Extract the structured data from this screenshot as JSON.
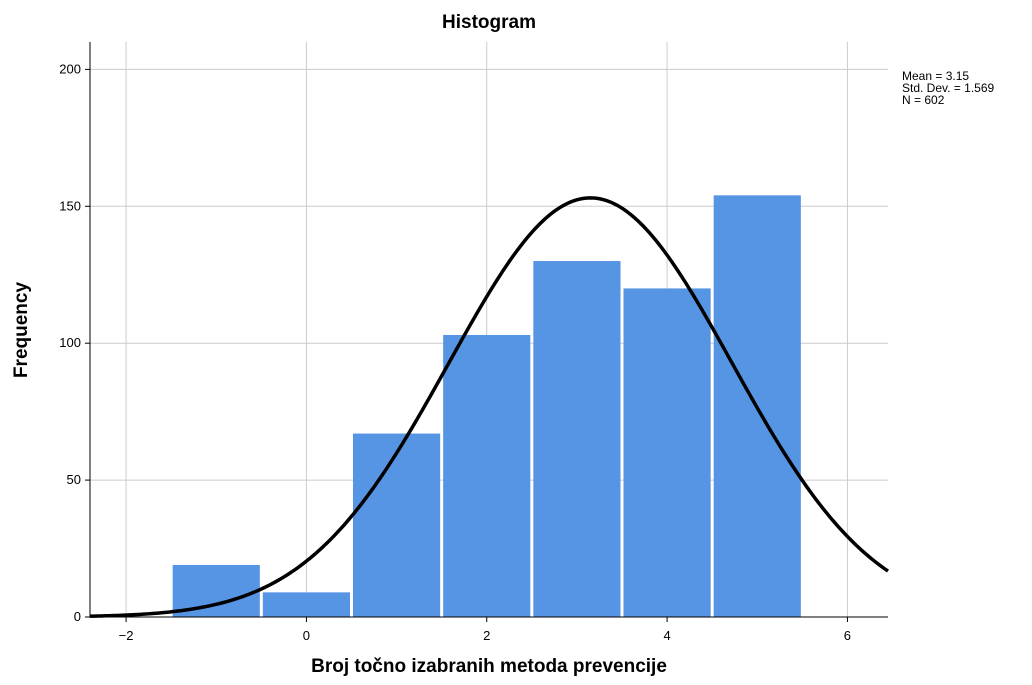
{
  "chart_data": {
    "type": "bar",
    "title": "Histogram",
    "xlabel": "Broj točno izabranih metoda prevencije",
    "ylabel": "Frequency",
    "xlim": [
      -2.4,
      6.45
    ],
    "ylim": [
      0,
      210
    ],
    "xticks": [
      -2,
      0,
      2,
      4,
      6
    ],
    "yticks": [
      0,
      50,
      100,
      150,
      200
    ],
    "xtick_labels": [
      "−2",
      "0",
      "2",
      "4",
      "6"
    ],
    "ytick_labels": [
      "0",
      "50",
      "100",
      "150",
      "200"
    ],
    "grid": true,
    "bins": [
      {
        "center": -1,
        "value": 19
      },
      {
        "center": 0,
        "value": 9
      },
      {
        "center": 1,
        "value": 67
      },
      {
        "center": 2,
        "value": 103
      },
      {
        "center": 3,
        "value": 130
      },
      {
        "center": 4,
        "value": 120
      },
      {
        "center": 5,
        "value": 154
      }
    ],
    "bin_width": 1,
    "normal_curve": {
      "mean": 3.15,
      "std": 1.569,
      "n": 602
    },
    "colors": {
      "bar": "#5694e4",
      "curve": "#000000",
      "grid": "#cccccc"
    }
  },
  "stats": {
    "mean": "Mean = 3.15",
    "std": "Std. Dev. = 1.569",
    "n": "N = 602"
  }
}
